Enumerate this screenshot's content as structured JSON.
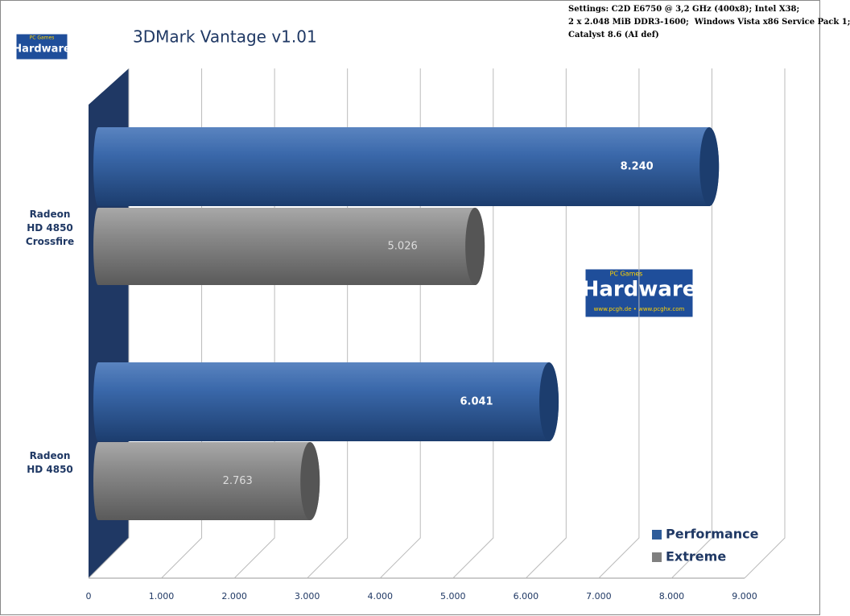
{
  "chart_data": {
    "type": "bar",
    "orientation": "horizontal",
    "title": "3DMark Vantage v1.01",
    "settings": [
      "Settings: C2D E6750 @ 3,2 GHz (400x8); Intel X38;",
      "2 x 2.048 MiB DDR3-1600;  Windows Vista x86 Service Pack 1;",
      "Catalyst 8.6 (AI def)"
    ],
    "logo": {
      "brand": "PC Games",
      "name": "Hardware",
      "url": "www.pcgh.de • www.pcghx.com"
    },
    "categories": [
      "Radeon HD 4850 Crossfire",
      "Radeon HD 4850"
    ],
    "series": [
      {
        "name": "Performance",
        "color": "#2e5c9a",
        "values": [
          8240,
          6041
        ],
        "value_labels": [
          "8.240",
          "6.041"
        ]
      },
      {
        "name": "Extreme",
        "color": "#7f7f7f",
        "values": [
          5026,
          2763
        ],
        "value_labels": [
          "5.026",
          "2.763"
        ]
      }
    ],
    "xlim": [
      0,
      9000
    ],
    "xticks": [
      0,
      {
        "value": 1000,
        "label": "1.000"
      },
      {
        "value": 2000,
        "label": "2.000"
      },
      {
        "value": 3000,
        "label": "3.000"
      },
      {
        "value": 4000,
        "label": "4.000"
      },
      {
        "value": 5000,
        "label": "5.000"
      },
      {
        "value": 6000,
        "label": "6.000"
      },
      {
        "value": 7000,
        "label": "7.000"
      },
      {
        "value": 8000,
        "label": "8.000"
      },
      {
        "value": 9000,
        "label": "9.000"
      }
    ],
    "grid": true,
    "legend": "bottom-right"
  }
}
